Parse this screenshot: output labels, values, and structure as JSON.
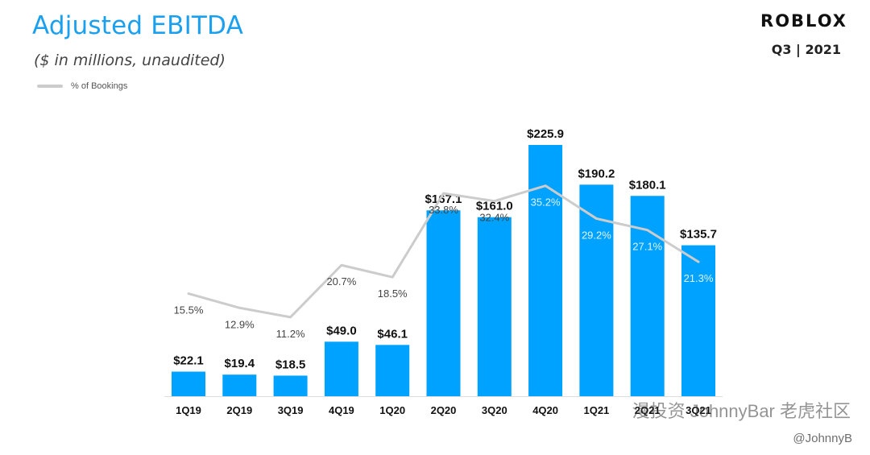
{
  "header": {
    "title": "Adjusted EBITDA",
    "subtitle": "($ in millions,  unaudited)",
    "brand": "ROBLOX",
    "period": "Q3 | 2021"
  },
  "legend": {
    "label": "% of Bookings"
  },
  "colors": {
    "bar": "#00a2ff",
    "line": "#cccccc",
    "pct_on_bar": "#dff2ff",
    "pct_off_bar": "#444444"
  },
  "watermark": {
    "text": "漫投资 JohnnyBar  老虎社区",
    "handle": "@JohnnyB"
  },
  "chart_data": {
    "type": "bar",
    "title": "Adjusted EBITDA",
    "xlabel": "",
    "ylabel": "$ in millions",
    "ylim": [
      0,
      240
    ],
    "categories": [
      "1Q19",
      "2Q19",
      "3Q19",
      "4Q19",
      "1Q20",
      "2Q20",
      "3Q20",
      "4Q20",
      "1Q21",
      "2Q21",
      "3Q21"
    ],
    "series": [
      {
        "name": "Adjusted EBITDA",
        "values": [
          22.1,
          19.4,
          18.5,
          49.0,
          46.1,
          167.1,
          161.0,
          225.9,
          190.2,
          180.1,
          135.7
        ],
        "labels": [
          "$22.1",
          "$19.4",
          "$18.5",
          "$49.0",
          "$46.1",
          "$167.1",
          "$161.0",
          "$225.9",
          "$190.2",
          "$180.1",
          "$135.7"
        ]
      },
      {
        "name": "% of Bookings",
        "type": "line",
        "values": [
          15.5,
          12.9,
          11.2,
          20.7,
          18.5,
          33.8,
          32.4,
          35.2,
          29.2,
          27.1,
          21.3
        ],
        "labels": [
          "15.5%",
          "12.9%",
          "11.2%",
          "20.7%",
          "18.5%",
          "33.8%",
          "32.4%",
          "35.2%",
          "29.2%",
          "27.1%",
          "21.3%"
        ],
        "ylim": [
          0,
          60
        ]
      }
    ]
  }
}
